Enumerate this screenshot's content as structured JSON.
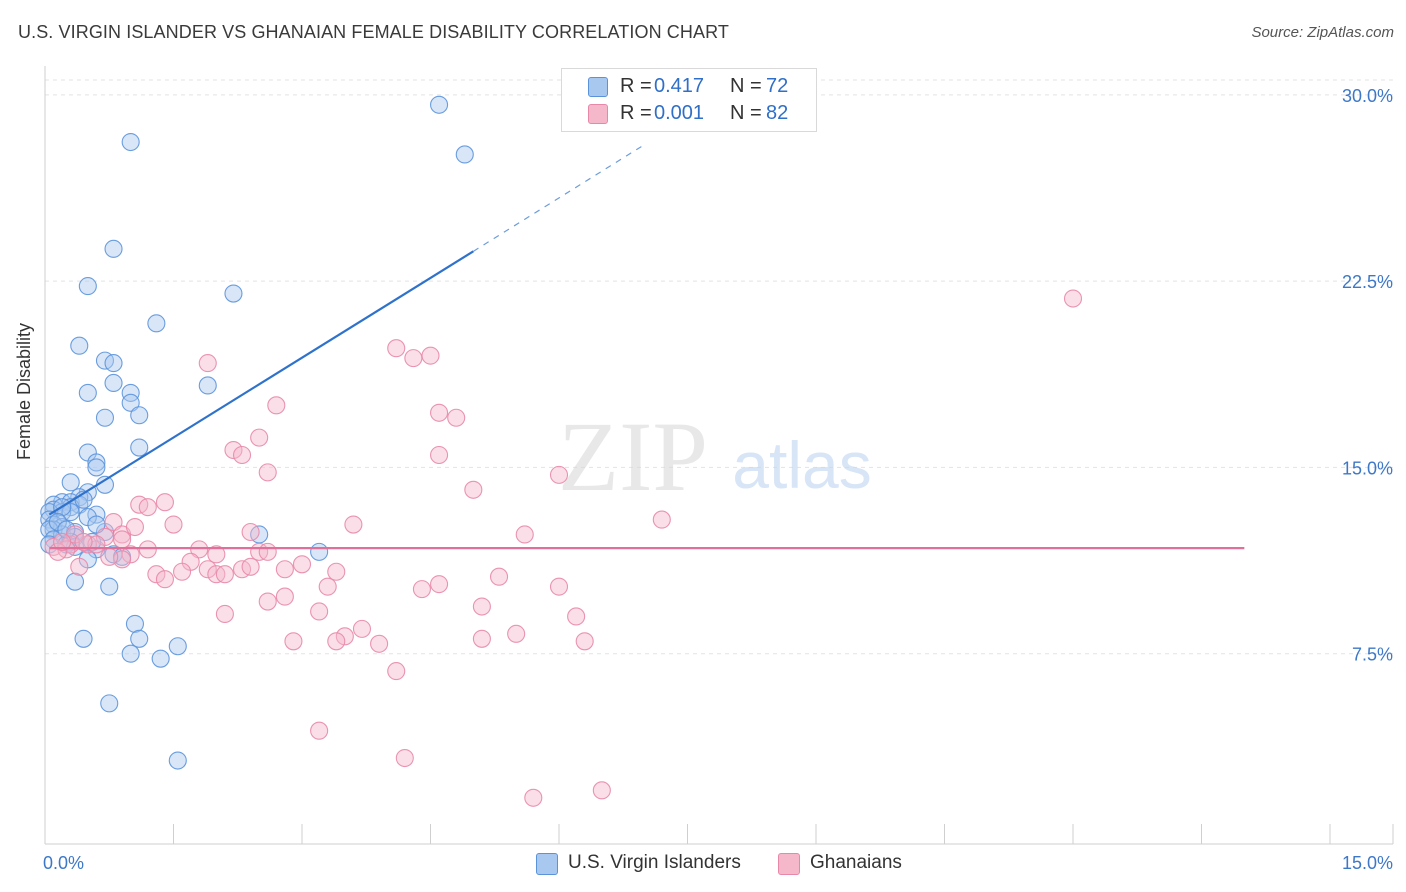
{
  "title": "U.S. VIRGIN ISLANDER VS GHANAIAN FEMALE DISABILITY CORRELATION CHART",
  "source": "Source: ZipAtlas.com",
  "watermark": {
    "zip": "ZIP",
    "atlas": "atlas"
  },
  "stats": [
    {
      "r_label": "R =",
      "r_value": "0.417",
      "n_label": "N =",
      "n_value": "72",
      "color": "#a8c8f0"
    },
    {
      "r_label": "R =",
      "r_value": "0.001",
      "n_label": "N =",
      "n_value": "82",
      "color": "#f5b8cb"
    }
  ],
  "legend": [
    {
      "label": "U.S. Virgin Islanders",
      "color": "#a8c8f0"
    },
    {
      "label": "Ghanaians",
      "color": "#f5b8cb"
    }
  ],
  "chart_data": {
    "type": "scatter",
    "title": "U.S. VIRGIN ISLANDER VS GHANAIAN FEMALE DISABILITY CORRELATION CHART",
    "xlabel": "",
    "ylabel": "Female Disability",
    "xlim": [
      0,
      15
    ],
    "ylim": [
      0,
      31
    ],
    "x_tick_labels": [
      "0.0%",
      "15.0%"
    ],
    "y_ticks": [
      7.5,
      15.0,
      22.5,
      30.0
    ],
    "y_tick_labels": [
      "7.5%",
      "15.0%",
      "22.5%",
      "30.0%"
    ],
    "grid": true,
    "series": [
      {
        "name": "U.S. Virgin Islanders",
        "color": "#5b93db",
        "fill": "#a8c8f0",
        "r": 0.417,
        "n": 72,
        "trend": {
          "x1": 0.05,
          "y1": 13.1,
          "x2": 5.0,
          "y2": 23.7,
          "x_dash_end": 7.0,
          "y_dash_end": 28.0
        },
        "points": [
          [
            4.6,
            29.6
          ],
          [
            1.0,
            28.1
          ],
          [
            4.9,
            27.6
          ],
          [
            0.8,
            23.8
          ],
          [
            0.5,
            22.3
          ],
          [
            2.2,
            22.0
          ],
          [
            1.3,
            20.8
          ],
          [
            0.4,
            19.9
          ],
          [
            0.7,
            19.3
          ],
          [
            0.8,
            19.2
          ],
          [
            0.8,
            18.4
          ],
          [
            1.9,
            18.3
          ],
          [
            0.5,
            18.0
          ],
          [
            1.0,
            18.0
          ],
          [
            1.0,
            17.6
          ],
          [
            1.1,
            17.1
          ],
          [
            0.7,
            17.0
          ],
          [
            1.1,
            15.8
          ],
          [
            0.5,
            15.6
          ],
          [
            0.6,
            15.2
          ],
          [
            0.6,
            15.0
          ],
          [
            0.3,
            14.4
          ],
          [
            0.7,
            14.3
          ],
          [
            0.5,
            14.0
          ],
          [
            0.4,
            13.8
          ],
          [
            0.2,
            13.6
          ],
          [
            0.3,
            13.6
          ],
          [
            0.4,
            13.5
          ],
          [
            0.1,
            13.5
          ],
          [
            0.3,
            13.4
          ],
          [
            0.1,
            13.3
          ],
          [
            0.2,
            13.2
          ],
          [
            0.05,
            13.2
          ],
          [
            0.3,
            13.2
          ],
          [
            0.6,
            13.1
          ],
          [
            0.5,
            13.0
          ],
          [
            0.05,
            12.9
          ],
          [
            0.1,
            12.7
          ],
          [
            0.2,
            12.6
          ],
          [
            0.1,
            12.5
          ],
          [
            0.05,
            12.5
          ],
          [
            0.35,
            12.4
          ],
          [
            0.7,
            12.4
          ],
          [
            0.2,
            12.3
          ],
          [
            0.6,
            12.7
          ],
          [
            0.35,
            12.2
          ],
          [
            0.1,
            12.1
          ],
          [
            0.3,
            12.0
          ],
          [
            0.05,
            11.9
          ],
          [
            0.25,
            11.9
          ],
          [
            0.35,
            11.8
          ],
          [
            2.5,
            12.3
          ],
          [
            3.2,
            11.6
          ],
          [
            0.6,
            11.7
          ],
          [
            0.8,
            11.5
          ],
          [
            0.5,
            11.3
          ],
          [
            0.9,
            11.4
          ],
          [
            0.35,
            10.4
          ],
          [
            0.75,
            10.2
          ],
          [
            1.05,
            8.7
          ],
          [
            1.1,
            8.1
          ],
          [
            0.45,
            8.1
          ],
          [
            1.55,
            7.8
          ],
          [
            1.0,
            7.5
          ],
          [
            1.35,
            7.3
          ],
          [
            0.75,
            5.5
          ],
          [
            1.55,
            3.2
          ],
          [
            0.2,
            13.4
          ],
          [
            0.15,
            12.8
          ],
          [
            0.45,
            13.7
          ],
          [
            0.55,
            12.0
          ],
          [
            0.25,
            12.5
          ]
        ]
      },
      {
        "name": "Ghanaians",
        "color": "#e888a8",
        "fill": "#f5b8cb",
        "r": 0.001,
        "n": 82,
        "trend": {
          "x1": 0.05,
          "y1": 11.75,
          "x2": 14.0,
          "y2": 11.75
        },
        "points": [
          [
            12.0,
            21.8
          ],
          [
            4.1,
            19.8
          ],
          [
            4.5,
            19.5
          ],
          [
            4.3,
            19.4
          ],
          [
            1.9,
            19.2
          ],
          [
            2.7,
            17.5
          ],
          [
            4.6,
            17.2
          ],
          [
            4.8,
            17.0
          ],
          [
            2.5,
            16.2
          ],
          [
            2.2,
            15.7
          ],
          [
            2.3,
            15.5
          ],
          [
            4.6,
            15.5
          ],
          [
            2.6,
            14.8
          ],
          [
            6.0,
            14.7
          ],
          [
            5.0,
            14.1
          ],
          [
            1.4,
            13.6
          ],
          [
            1.1,
            13.5
          ],
          [
            1.2,
            13.4
          ],
          [
            7.2,
            12.9
          ],
          [
            1.5,
            12.7
          ],
          [
            0.8,
            12.8
          ],
          [
            3.6,
            12.7
          ],
          [
            2.4,
            12.4
          ],
          [
            0.9,
            12.3
          ],
          [
            0.7,
            12.2
          ],
          [
            5.6,
            12.3
          ],
          [
            0.3,
            11.9
          ],
          [
            0.1,
            11.8
          ],
          [
            0.25,
            11.7
          ],
          [
            0.15,
            11.6
          ],
          [
            0.5,
            11.9
          ],
          [
            1.0,
            11.5
          ],
          [
            1.8,
            11.7
          ],
          [
            2.0,
            11.5
          ],
          [
            2.5,
            11.6
          ],
          [
            2.6,
            11.6
          ],
          [
            0.9,
            11.3
          ],
          [
            1.7,
            11.2
          ],
          [
            3.0,
            11.1
          ],
          [
            1.9,
            10.9
          ],
          [
            2.0,
            10.7
          ],
          [
            2.3,
            10.9
          ],
          [
            1.6,
            10.8
          ],
          [
            1.3,
            10.7
          ],
          [
            2.8,
            10.9
          ],
          [
            3.4,
            10.8
          ],
          [
            0.4,
            11.0
          ],
          [
            5.3,
            10.6
          ],
          [
            3.3,
            10.2
          ],
          [
            4.6,
            10.3
          ],
          [
            4.4,
            10.1
          ],
          [
            6.0,
            10.2
          ],
          [
            2.8,
            9.8
          ],
          [
            2.6,
            9.6
          ],
          [
            1.4,
            10.5
          ],
          [
            3.2,
            9.2
          ],
          [
            5.1,
            9.4
          ],
          [
            6.2,
            9.0
          ],
          [
            2.1,
            9.1
          ],
          [
            3.7,
            8.5
          ],
          [
            3.5,
            8.2
          ],
          [
            5.1,
            8.1
          ],
          [
            2.9,
            8.0
          ],
          [
            3.4,
            8.0
          ],
          [
            3.9,
            7.9
          ],
          [
            5.5,
            8.3
          ],
          [
            6.3,
            8.0
          ],
          [
            4.1,
            6.8
          ],
          [
            3.2,
            4.4
          ],
          [
            4.2,
            3.3
          ],
          [
            6.5,
            2.0
          ],
          [
            5.7,
            1.7
          ],
          [
            0.9,
            12.1
          ],
          [
            0.6,
            11.9
          ],
          [
            0.35,
            12.3
          ],
          [
            1.2,
            11.7
          ],
          [
            2.4,
            11.0
          ],
          [
            0.2,
            12.0
          ],
          [
            1.05,
            12.6
          ],
          [
            0.45,
            12.0
          ],
          [
            0.75,
            11.4
          ],
          [
            2.1,
            10.7
          ]
        ]
      }
    ]
  }
}
